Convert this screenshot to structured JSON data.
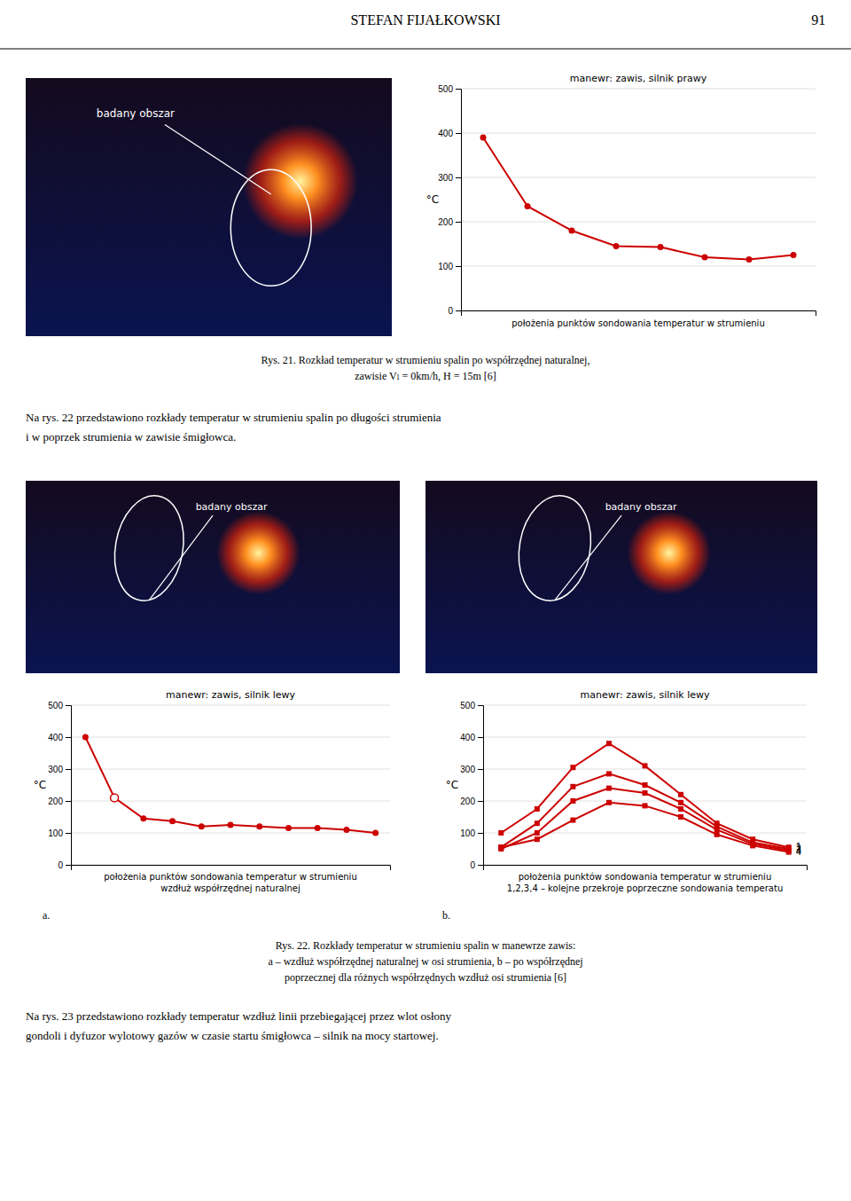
{
  "header": {
    "title": "STEFAN FIJAŁKOWSKI",
    "page_number": "91"
  },
  "images": [
    {
      "annotation": "badany obszar"
    },
    {
      "annotation": "badany obszar"
    },
    {
      "annotation": "badany obszar"
    }
  ],
  "captions": [
    [
      "Rys. 21. Rozkład temperatur w strumieniu spalin po współrzędnej naturalnej,",
      "zawisie Vₗ = 0km/h, H = 15m [6]"
    ],
    [
      "Rys. 22. Rozkłady temperatur w strumieniu spalin w manewrze zawis:",
      "a – wzdłuż współrzędnej naturalnej w osi strumienia, b – po współrzędnej",
      "poprzecznej dla różnych współrzędnych wzdłuż osi strumienia [6]"
    ]
  ],
  "paragraphs": [
    [
      "Na rys. 22 przedstawiono rozkłady temperatur w strumieniu spalin po długości strumienia",
      "i w poprzek strumienia w zawisie śmigłowca."
    ],
    [
      "Na rys. 23 przedstawiono rozkłady temperatur wzdłuż linii przebiegającej przez wlot osłony",
      "gondoli i dyfuzor wylotowy gazów w czasie startu śmigłowca – silnik na mocy startowej."
    ]
  ],
  "chart_data": [
    {
      "type": "line",
      "title": "manewr: zawis, silnik prawy",
      "xlabel": "położenia punktów sondowania temperatur w strumieniu",
      "ylabel": "°C",
      "x": [
        0,
        1,
        2,
        3,
        4,
        5,
        6,
        7
      ],
      "series": [
        {
          "color": "#cc0000",
          "marker": "circle",
          "values": [
            390,
            235,
            180,
            145,
            143,
            120,
            115,
            125
          ]
        }
      ],
      "xlim": [
        -0.5,
        7.5
      ],
      "ylim": [
        0,
        500
      ],
      "yticks": [
        0,
        100,
        200,
        300,
        400,
        500
      ],
      "grid": true,
      "tick_labels": "y"
    },
    {
      "type": "line",
      "title": "manewr: zawis, silnik lewy",
      "xlabel": [
        "położenia punktów sondowania temperatur w strumieniu",
        "wzdłuż współrzędnej naturalnej"
      ],
      "ylabel": "°C",
      "annotations": [
        "a."
      ],
      "series": [
        {
          "color": "#cc0000",
          "marker": "circle",
          "x": [
            0,
            1,
            2,
            3,
            4,
            5,
            6,
            7,
            8,
            9,
            10
          ],
          "values": [
            400,
            210,
            145,
            137,
            120,
            125,
            120,
            115,
            115,
            110,
            100
          ]
        },
        {
          "type": "scatter",
          "color": "#cc0000",
          "marker": "open-circle",
          "x": [
            1
          ],
          "values": [
            210
          ]
        }
      ],
      "xlim": [
        -0.5,
        10.5
      ],
      "ylim": [
        0,
        500
      ],
      "yticks": [
        0,
        100,
        200,
        300,
        400,
        500
      ],
      "grid": true,
      "tick_labels": "y"
    },
    {
      "type": "line",
      "title": "manewr: zawis, silnik lewy",
      "xlabel": [
        "położenia punktów sondowania temperatur w strumieniu",
        "1,2,3,4 – kolejne przekroje poprzeczne sondowania temperatu"
      ],
      "ylabel": "°C",
      "annotations": [
        "b."
      ],
      "x": [
        0,
        1,
        2,
        3,
        4,
        5,
        6,
        7,
        8
      ],
      "series": [
        {
          "name": "1",
          "color": "#cc0000",
          "marker": "square",
          "values": [
            100,
            175,
            305,
            380,
            310,
            220,
            130,
            80,
            55
          ]
        },
        {
          "name": "2",
          "color": "#cc0000",
          "marker": "square",
          "values": [
            55,
            130,
            245,
            285,
            250,
            195,
            120,
            70,
            50
          ]
        },
        {
          "name": "3",
          "color": "#cc0000",
          "marker": "square",
          "values": [
            50,
            100,
            200,
            240,
            225,
            175,
            110,
            65,
            45
          ]
        },
        {
          "name": "4",
          "color": "#cc0000",
          "marker": "square",
          "values": [
            55,
            80,
            140,
            195,
            185,
            150,
            95,
            60,
            40
          ]
        }
      ],
      "xlim": [
        -0.5,
        8.5
      ],
      "ylim": [
        0,
        500
      ],
      "yticks": [
        0,
        100,
        200,
        300,
        400,
        500
      ],
      "grid": true,
      "tick_labels": "y"
    }
  ]
}
